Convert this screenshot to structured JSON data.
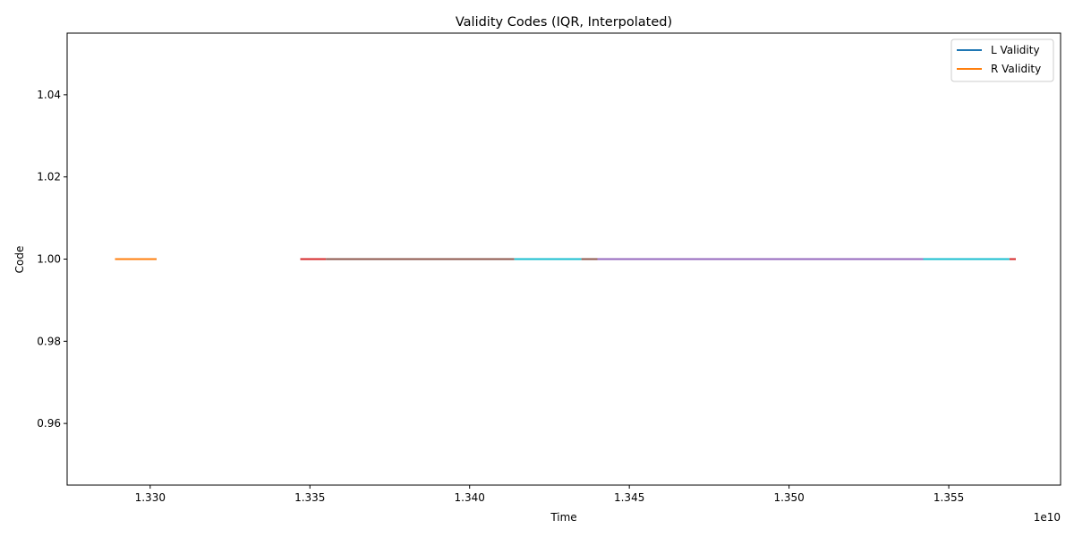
{
  "chart_data": {
    "type": "line",
    "title": "Validity Codes (IQR, Interpolated)",
    "xlabel": "Time",
    "ylabel": "Code",
    "x_offset_label": "1e10",
    "xlim": [
      1.3274,
      1.3585
    ],
    "ylim": [
      0.945,
      1.055
    ],
    "x_ticks": [
      1.33,
      1.335,
      1.34,
      1.345,
      1.35,
      1.355
    ],
    "x_tick_labels": [
      "1.330",
      "1.335",
      "1.340",
      "1.345",
      "1.350",
      "1.355"
    ],
    "y_ticks": [
      0.96,
      0.98,
      1.0,
      1.02,
      1.04
    ],
    "y_tick_labels": [
      "0.96",
      "0.98",
      "1.00",
      "1.02",
      "1.04"
    ],
    "grid": false,
    "legend_position": "top-right",
    "legend": [
      {
        "name": "L Validity",
        "color": "#1f77b4"
      },
      {
        "name": "R Validity",
        "color": "#ff7f0e"
      }
    ],
    "series": [
      {
        "color": "#1f77b4",
        "x": [
          1.3289,
          1.3302
        ],
        "y": [
          1.0,
          1.0
        ]
      },
      {
        "color": "#ff7f0e",
        "x": [
          1.3289,
          1.3302
        ],
        "y": [
          1.0,
          1.0
        ]
      },
      {
        "color": "#d62728",
        "x": [
          1.3347,
          1.3355
        ],
        "y": [
          1.0,
          1.0
        ]
      },
      {
        "color": "#8c564b",
        "x": [
          1.3355,
          1.3414
        ],
        "y": [
          1.0,
          1.0
        ]
      },
      {
        "color": "#17becf",
        "x": [
          1.3414,
          1.3435
        ],
        "y": [
          1.0,
          1.0
        ]
      },
      {
        "color": "#8c564b",
        "x": [
          1.3435,
          1.344
        ],
        "y": [
          1.0,
          1.0
        ]
      },
      {
        "color": "#9467bd",
        "x": [
          1.344,
          1.3542
        ],
        "y": [
          1.0,
          1.0
        ]
      },
      {
        "color": "#17becf",
        "x": [
          1.3542,
          1.3569
        ],
        "y": [
          1.0,
          1.0
        ]
      },
      {
        "color": "#d62728",
        "x": [
          1.3569,
          1.3571
        ],
        "y": [
          1.0,
          1.0
        ]
      }
    ]
  }
}
